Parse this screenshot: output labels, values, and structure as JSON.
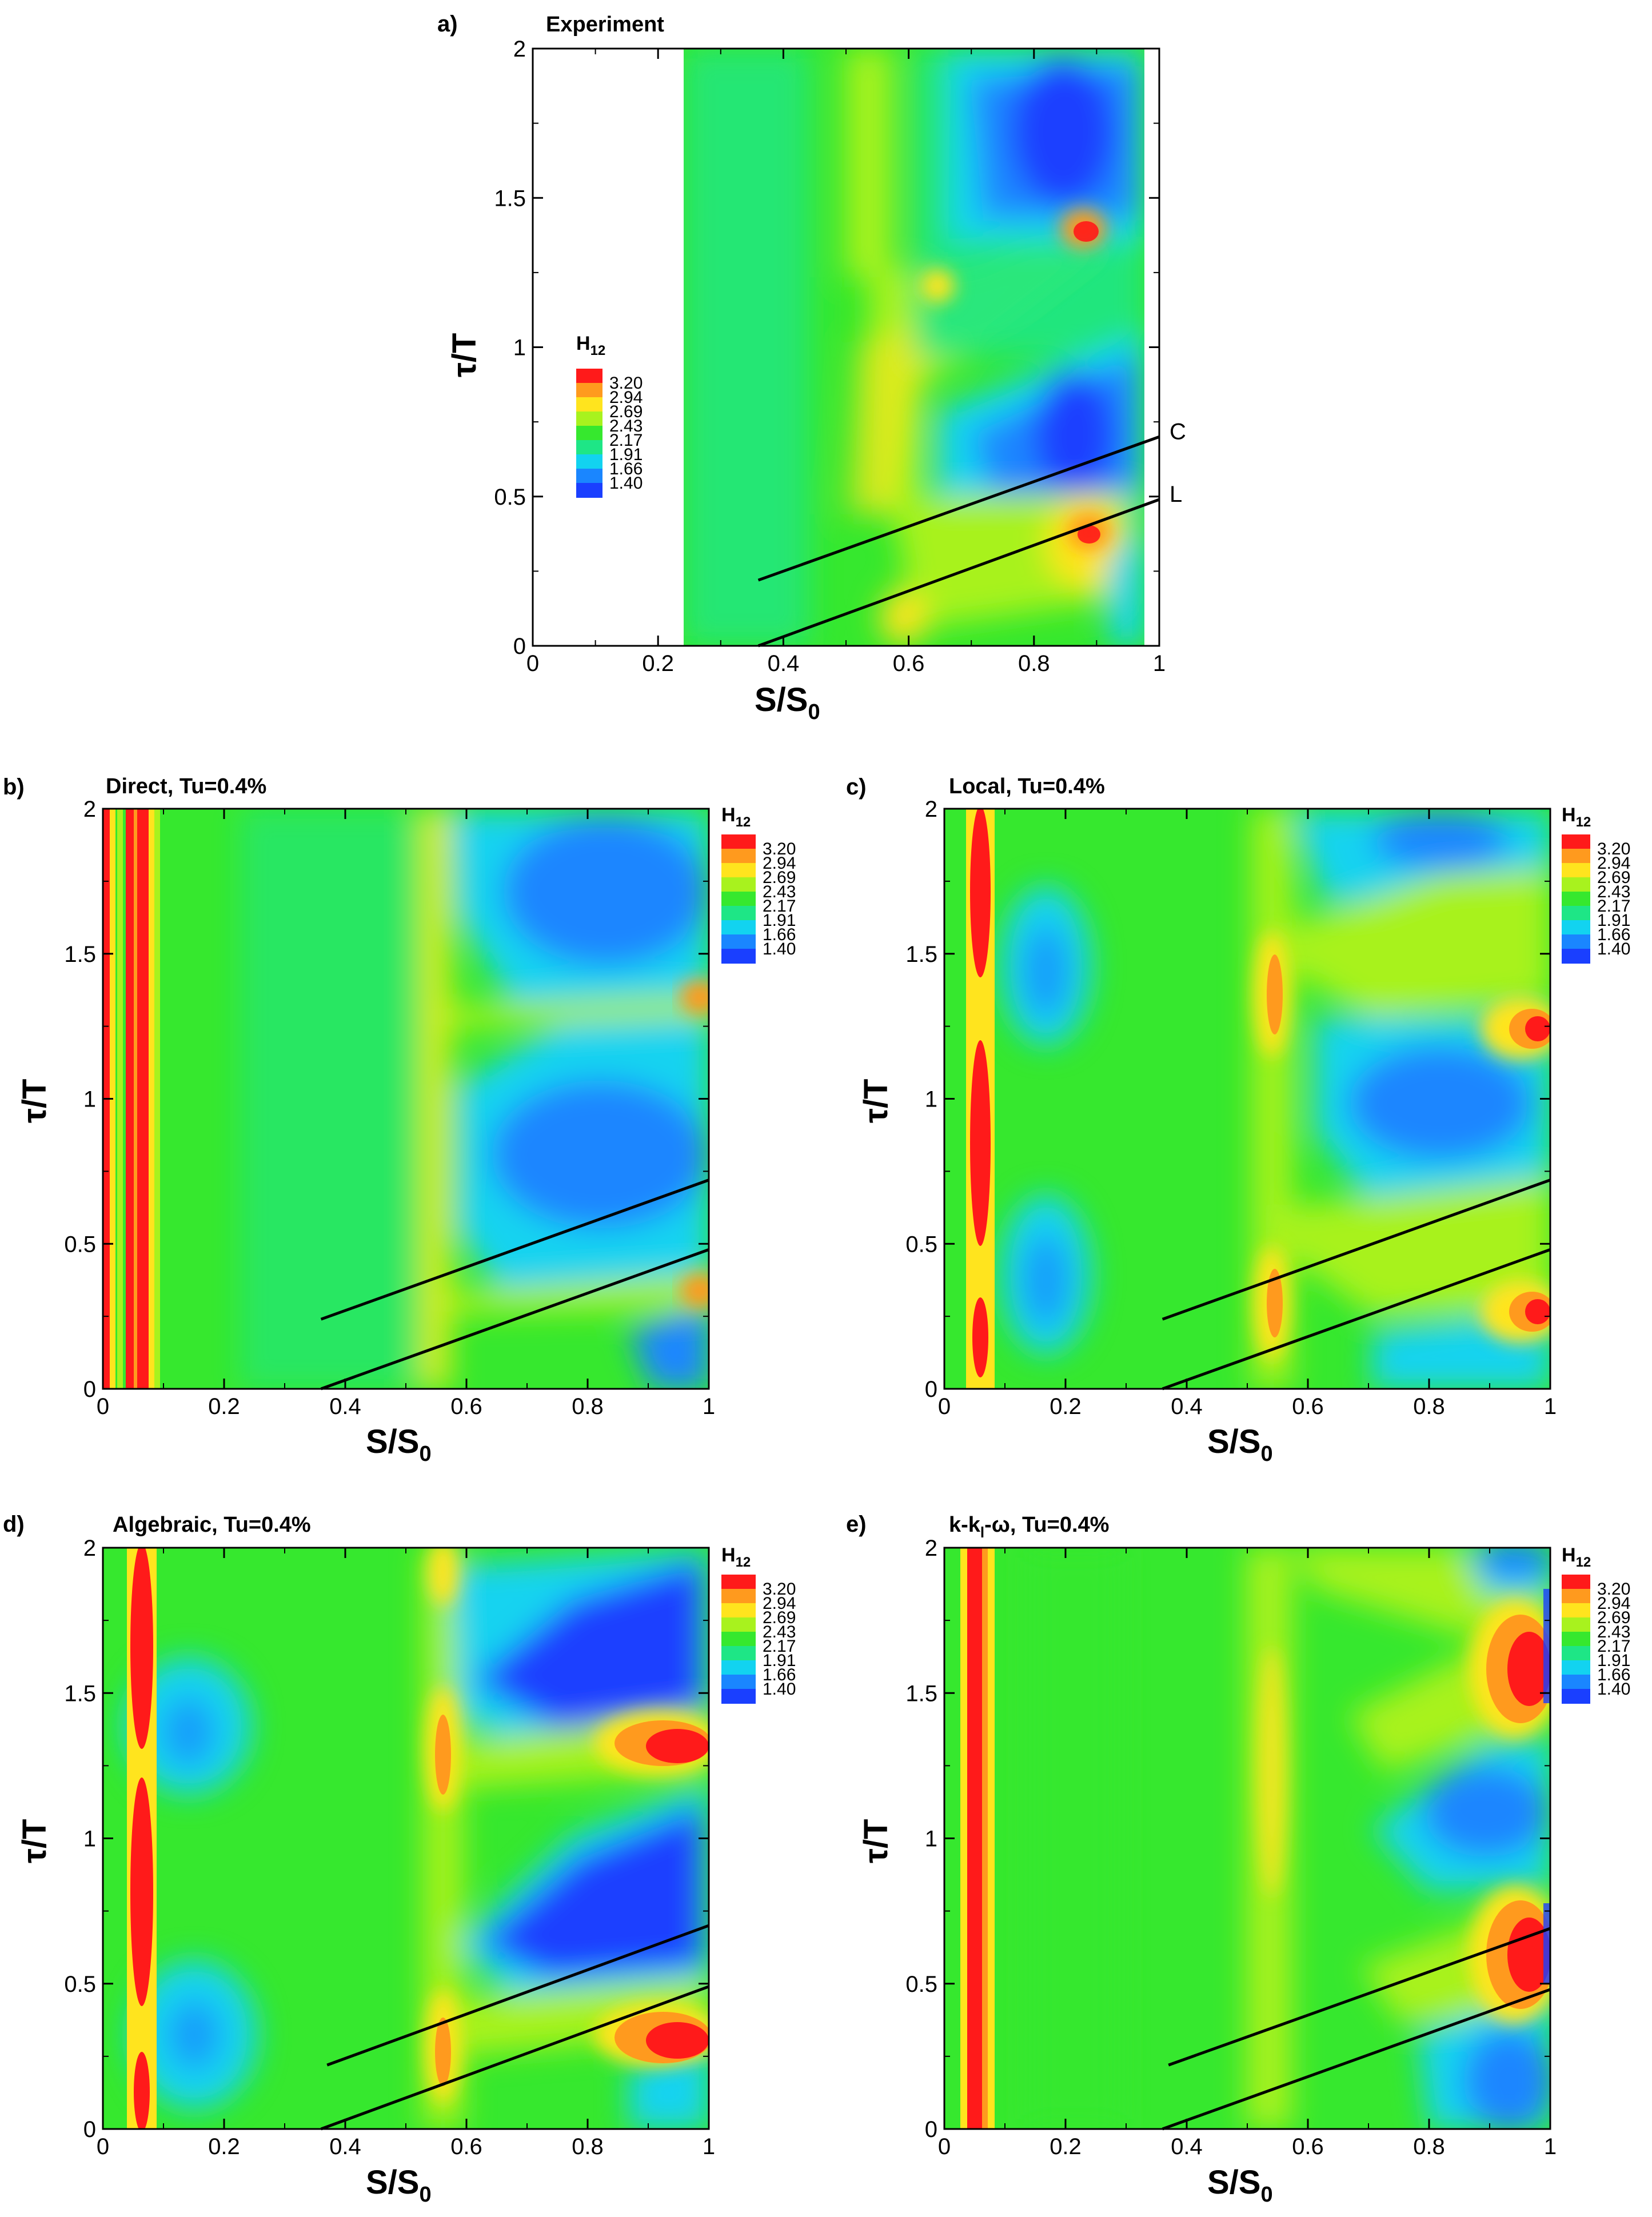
{
  "colors": {
    "c140": "#1a3fff",
    "c166": "#1a86ff",
    "c191": "#12d3f0",
    "c217": "#1ee686",
    "c243": "#36e82e",
    "c269": "#a8f21e",
    "c294": "#ffe41e",
    "c320": "#ff9a1e",
    "c_peak": "#ff1a1a"
  },
  "chart_data": [
    {
      "id": "a",
      "type": "heatmap",
      "letter": "a)",
      "title": "Experiment",
      "xlabel_main": "S/S",
      "xlabel_sub": "0",
      "ylabel": "τ/T",
      "xlim": [
        0,
        1
      ],
      "ylim": [
        0,
        2
      ],
      "xticks": [
        "0",
        "0.2",
        "0.4",
        "0.6",
        "0.8",
        "1"
      ],
      "yticks": [
        "0",
        "0.5",
        "1",
        "1.5",
        "2"
      ],
      "data_region_x": [
        0.24,
        0.98
      ],
      "legend": {
        "title_main": "H",
        "title_sub": "12",
        "levels": [
          "3.20",
          "2.94",
          "2.69",
          "2.43",
          "2.17",
          "1.91",
          "1.66",
          "1.40"
        ]
      },
      "lines": [
        {
          "x": [
            0.36,
            1.0
          ],
          "y": [
            0.22,
            0.7
          ],
          "tag": "C"
        },
        {
          "x": [
            0.36,
            1.0
          ],
          "y": [
            0.0,
            0.49
          ],
          "tag": "L"
        }
      ]
    },
    {
      "id": "b",
      "type": "heatmap",
      "letter": "b)",
      "title": "Direct, Tu=0.4%",
      "xlabel_main": "S/S",
      "xlabel_sub": "0",
      "ylabel": "τ/T",
      "xlim": [
        0,
        1
      ],
      "ylim": [
        0,
        2
      ],
      "xticks": [
        "0",
        "0.2",
        "0.4",
        "0.6",
        "0.8",
        "1"
      ],
      "yticks": [
        "0",
        "0.5",
        "1",
        "1.5",
        "2"
      ],
      "legend": {
        "title_main": "H",
        "title_sub": "12",
        "levels": [
          "3.20",
          "2.94",
          "2.69",
          "2.43",
          "2.17",
          "1.91",
          "1.66",
          "1.40"
        ]
      },
      "lines": [
        {
          "x": [
            0.36,
            1.0
          ],
          "y": [
            0.24,
            0.72
          ]
        },
        {
          "x": [
            0.36,
            1.0
          ],
          "y": [
            0.0,
            0.48
          ]
        }
      ]
    },
    {
      "id": "c",
      "type": "heatmap",
      "letter": "c)",
      "title": "Local, Tu=0.4%",
      "xlabel_main": "S/S",
      "xlabel_sub": "0",
      "ylabel": "τ/T",
      "xlim": [
        0,
        1
      ],
      "ylim": [
        0,
        2
      ],
      "xticks": [
        "0",
        "0.2",
        "0.4",
        "0.6",
        "0.8",
        "1"
      ],
      "yticks": [
        "0",
        "0.5",
        "1",
        "1.5",
        "2"
      ],
      "legend": {
        "title_main": "H",
        "title_sub": "12",
        "levels": [
          "3.20",
          "2.94",
          "2.69",
          "2.43",
          "2.17",
          "1.91",
          "1.66",
          "1.40"
        ]
      },
      "lines": [
        {
          "x": [
            0.36,
            1.0
          ],
          "y": [
            0.24,
            0.72
          ]
        },
        {
          "x": [
            0.36,
            1.0
          ],
          "y": [
            0.0,
            0.48
          ]
        }
      ]
    },
    {
      "id": "d",
      "type": "heatmap",
      "letter": "d)",
      "title": "Algebraic, Tu=0.4%",
      "xlabel_main": "S/S",
      "xlabel_sub": "0",
      "ylabel": "τ/T",
      "xlim": [
        0,
        1
      ],
      "ylim": [
        0,
        2
      ],
      "xticks": [
        "0",
        "0.2",
        "0.4",
        "0.6",
        "0.8",
        "1"
      ],
      "yticks": [
        "0",
        "0.5",
        "1",
        "1.5",
        "2"
      ],
      "legend": {
        "title_main": "H",
        "title_sub": "12",
        "levels": [
          "3.20",
          "2.94",
          "2.69",
          "2.43",
          "2.17",
          "1.91",
          "1.66",
          "1.40"
        ]
      },
      "lines": [
        {
          "x": [
            0.37,
            1.0
          ],
          "y": [
            0.22,
            0.7
          ]
        },
        {
          "x": [
            0.36,
            1.0
          ],
          "y": [
            0.0,
            0.49
          ]
        }
      ]
    },
    {
      "id": "e",
      "type": "heatmap",
      "letter": "e)",
      "title_main": "k-k",
      "title_sub": "l",
      "title_rest": "-ω, Tu=0.4%",
      "xlabel_main": "S/S",
      "xlabel_sub": "0",
      "ylabel": "τ/T",
      "xlim": [
        0,
        1
      ],
      "ylim": [
        0,
        2
      ],
      "xticks": [
        "0",
        "0.2",
        "0.4",
        "0.6",
        "0.8",
        "1"
      ],
      "yticks": [
        "0",
        "0.5",
        "1",
        "1.5",
        "2"
      ],
      "legend": {
        "title_main": "H",
        "title_sub": "12",
        "levels": [
          "3.20",
          "2.94",
          "2.69",
          "2.43",
          "2.17",
          "1.91",
          "1.66",
          "1.40"
        ]
      },
      "lines": [
        {
          "x": [
            0.37,
            1.0
          ],
          "y": [
            0.22,
            0.69
          ]
        },
        {
          "x": [
            0.36,
            1.0
          ],
          "y": [
            0.0,
            0.48
          ]
        }
      ]
    }
  ]
}
